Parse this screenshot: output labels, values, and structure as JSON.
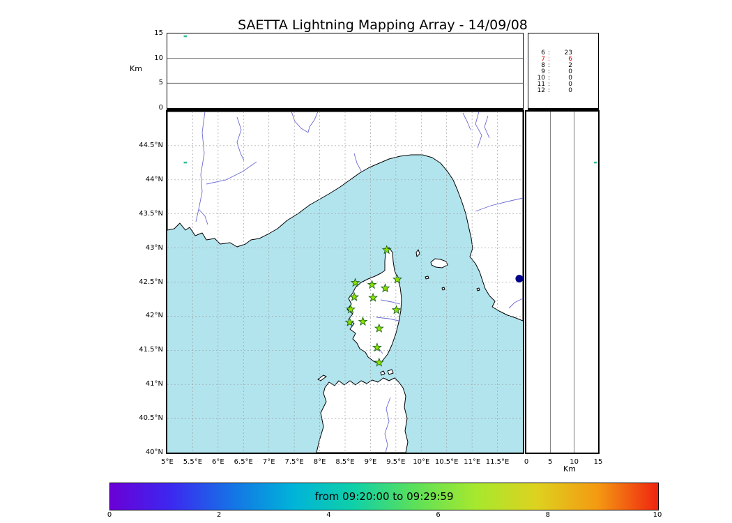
{
  "title": "SAETTA Lightning Mapping Array - 14/09/08",
  "colors": {
    "sea": "#b2e4ee",
    "land": "#ffffff",
    "river": "#6a6ad4",
    "grid": "#a0a0a0",
    "station_fill": "#8ee000",
    "station_edge": "#1c661c",
    "highlight_red": "#e00000"
  },
  "top_panel": {
    "axis_label": "Km",
    "ticks": [
      {
        "v": 15,
        "label": "15"
      },
      {
        "v": 10,
        "label": "10"
      },
      {
        "v": 5,
        "label": "5"
      },
      {
        "v": 0,
        "label": "0"
      }
    ]
  },
  "right_panel": {
    "axis_label": "Km",
    "ticks": [
      {
        "v": 0,
        "label": "0"
      },
      {
        "v": 5,
        "label": "5"
      },
      {
        "v": 10,
        "label": "10"
      },
      {
        "v": 15,
        "label": "15"
      }
    ]
  },
  "stats_panel": {
    "highlight_station": 7
  },
  "map": {
    "lon_range": [
      5,
      12
    ],
    "lat_range": [
      40,
      45
    ],
    "lat_ticks": [
      {
        "v": 44.5,
        "label": "44.5°N"
      },
      {
        "v": 44,
        "label": "44°N"
      },
      {
        "v": 43.5,
        "label": "43.5°N"
      },
      {
        "v": 43,
        "label": "43°N"
      },
      {
        "v": 42.5,
        "label": "42.5°N"
      },
      {
        "v": 42,
        "label": "42°N"
      },
      {
        "v": 41.5,
        "label": "41.5°N"
      },
      {
        "v": 41,
        "label": "41°N"
      },
      {
        "v": 40.5,
        "label": "40.5°N"
      },
      {
        "v": 40,
        "label": "40°N"
      }
    ],
    "lon_ticks": [
      {
        "v": 5,
        "label": "5°E"
      },
      {
        "v": 5.5,
        "label": "5.5°E"
      },
      {
        "v": 6,
        "label": "6°E"
      },
      {
        "v": 6.5,
        "label": "6.5°E"
      },
      {
        "v": 7,
        "label": "7°E"
      },
      {
        "v": 7.5,
        "label": "7.5°E"
      },
      {
        "v": 8,
        "label": "8°E"
      },
      {
        "v": 8.5,
        "label": "8.5°E"
      },
      {
        "v": 9,
        "label": "9°E"
      },
      {
        "v": 9.5,
        "label": "9.5°E"
      },
      {
        "v": 10,
        "label": "10°E"
      },
      {
        "v": 10.5,
        "label": "10.5°E"
      },
      {
        "v": 11,
        "label": "11°E"
      },
      {
        "v": 11.5,
        "label": "11.5°E"
      }
    ]
  },
  "colorbar": {
    "label": "from 09:20:00 to 09:29:59",
    "ticks": [
      {
        "v": 0,
        "label": "0"
      },
      {
        "v": 2,
        "label": "2"
      },
      {
        "v": 4,
        "label": "4"
      },
      {
        "v": 6,
        "label": "6"
      },
      {
        "v": 8,
        "label": "8"
      },
      {
        "v": 10,
        "label": "10"
      }
    ],
    "stops": [
      "#6a00d6",
      "#3c28f0",
      "#1573e6",
      "#00b3d9",
      "#0fd0a8",
      "#5ce05a",
      "#a6e82e",
      "#ddd21f",
      "#f49a12",
      "#ef2410"
    ]
  },
  "chart_data": {
    "type": "scatter",
    "title": "SAETTA Lightning Mapping Array - 14/09/08",
    "time_window": "from 09:20:00 to 09:29:59",
    "map_extent": {
      "lon_deg_e": [
        5,
        12
      ],
      "lat_deg_n": [
        40,
        45
      ]
    },
    "altitude_range_km": [
      0,
      15
    ],
    "colorbar_range_minutes": [
      0,
      10
    ],
    "stations_lonlat": [
      [
        9.32,
        42.97
      ],
      [
        8.7,
        42.49
      ],
      [
        9.03,
        42.46
      ],
      [
        9.29,
        42.41
      ],
      [
        9.53,
        42.54
      ],
      [
        8.68,
        42.28
      ],
      [
        9.05,
        42.27
      ],
      [
        8.61,
        42.1
      ],
      [
        9.51,
        42.09
      ],
      [
        8.59,
        41.91
      ],
      [
        8.85,
        41.92
      ],
      [
        9.17,
        41.82
      ],
      [
        9.13,
        41.54
      ],
      [
        9.17,
        41.32
      ]
    ],
    "events": [
      {
        "lon": 11.93,
        "lat": 42.55,
        "alt_km": 0.3,
        "marker": "dot",
        "color": "#00008b"
      },
      {
        "lon": 5.35,
        "lat": 44.25,
        "alt_km": 14.4,
        "marker": "tick",
        "color": "#2fbf8f"
      }
    ],
    "sources_per_station_count": [
      {
        "stations": 6,
        "events": 23
      },
      {
        "stations": 7,
        "events": 6
      },
      {
        "stations": 8,
        "events": 2
      },
      {
        "stations": 9,
        "events": 0
      },
      {
        "stations": 10,
        "events": 0
      },
      {
        "stations": 11,
        "events": 0
      },
      {
        "stations": 12,
        "events": 0
      }
    ]
  }
}
